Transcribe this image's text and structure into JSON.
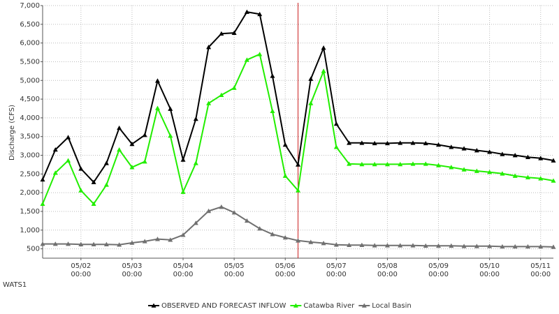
{
  "chart_data": {
    "type": "line",
    "y_label": "Discharge (CFS)",
    "station": "WATS1",
    "x": [
      "05/01 06:00",
      "05/01 12:00",
      "05/01 18:00",
      "05/02 00:00",
      "05/02 06:00",
      "05/02 12:00",
      "05/02 18:00",
      "05/03 00:00",
      "05/03 06:00",
      "05/03 12:00",
      "05/03 18:00",
      "05/04 00:00",
      "05/04 06:00",
      "05/04 12:00",
      "05/04 18:00",
      "05/05 00:00",
      "05/05 06:00",
      "05/05 12:00",
      "05/05 18:00",
      "05/06 00:00",
      "05/06 06:00",
      "05/06 12:00",
      "05/06 18:00",
      "05/07 00:00",
      "05/07 06:00",
      "05/07 12:00",
      "05/07 18:00",
      "05/08 00:00",
      "05/08 06:00",
      "05/08 12:00",
      "05/08 18:00",
      "05/09 00:00",
      "05/09 06:00",
      "05/09 12:00",
      "05/09 18:00",
      "05/10 00:00",
      "05/10 06:00",
      "05/10 12:00",
      "05/10 18:00",
      "05/11 00:00",
      "05/11 06:00"
    ],
    "series": [
      {
        "name": "OBSERVED AND FORECAST INFLOW",
        "color": "#000000",
        "values": [
          2350,
          3150,
          3480,
          2640,
          2280,
          2790,
          3730,
          3300,
          3540,
          4990,
          4240,
          2880,
          3970,
          5890,
          6250,
          6270,
          6830,
          6770,
          5120,
          3280,
          2750,
          5040,
          5870,
          3840,
          3330,
          3330,
          3320,
          3320,
          3330,
          3330,
          3320,
          3280,
          3220,
          3180,
          3130,
          3090,
          3030,
          3000,
          2950,
          2920,
          2860
        ]
      },
      {
        "name": "Catawba River",
        "color": "#22ee00",
        "values": [
          1700,
          2530,
          2860,
          2060,
          1700,
          2210,
          3150,
          2680,
          2830,
          4260,
          3520,
          2020,
          2790,
          4390,
          4610,
          4800,
          5550,
          5700,
          4180,
          2450,
          2060,
          4390,
          5250,
          3220,
          2770,
          2760,
          2760,
          2760,
          2760,
          2770,
          2770,
          2730,
          2680,
          2620,
          2580,
          2550,
          2510,
          2450,
          2410,
          2380,
          2320
        ]
      },
      {
        "name": "Local Basin",
        "color": "#707070",
        "values": [
          630,
          630,
          630,
          620,
          620,
          620,
          610,
          660,
          700,
          760,
          740,
          870,
          1190,
          1510,
          1620,
          1470,
          1250,
          1040,
          890,
          800,
          720,
          680,
          650,
          610,
          600,
          600,
          590,
          590,
          590,
          590,
          580,
          580,
          580,
          570,
          570,
          570,
          560,
          560,
          560,
          560,
          550
        ]
      }
    ],
    "forecast_time": "05/06 06:00",
    "marker_color": "#cc2222",
    "xlim": [
      "05/01 06:00",
      "05/11 06:00"
    ],
    "xticks": [
      {
        "value": "05/02 00:00",
        "label": [
          "05/02",
          "00:00"
        ]
      },
      {
        "value": "05/03 00:00",
        "label": [
          "05/03",
          "00:00"
        ]
      },
      {
        "value": "05/04 00:00",
        "label": [
          "05/04",
          "00:00"
        ]
      },
      {
        "value": "05/05 00:00",
        "label": [
          "05/05",
          "00:00"
        ]
      },
      {
        "value": "05/06 00:00",
        "label": [
          "05/06",
          "00:00"
        ]
      },
      {
        "value": "05/07 00:00",
        "label": [
          "05/07",
          "00:00"
        ]
      },
      {
        "value": "05/08 00:00",
        "label": [
          "05/08",
          "00:00"
        ]
      },
      {
        "value": "05/09 00:00",
        "label": [
          "05/09",
          "00:00"
        ]
      },
      {
        "value": "05/10 00:00",
        "label": [
          "05/10",
          "00:00"
        ]
      },
      {
        "value": "05/11 00:00",
        "label": [
          "05/11",
          "00:00"
        ]
      }
    ],
    "ylim": [
      250,
      7000
    ],
    "yticks": [
      500,
      {
        "value": 1000,
        "label": "1,000"
      },
      {
        "value": 1500,
        "label": "1,500"
      },
      {
        "value": 2000,
        "label": "2,000"
      },
      {
        "value": 2500,
        "label": "2,500"
      },
      {
        "value": 3000,
        "label": "3,000"
      },
      {
        "value": 3500,
        "label": "3,500"
      },
      {
        "value": 4000,
        "label": "4,000"
      },
      {
        "value": 4500,
        "label": "4,500"
      },
      {
        "value": 5000,
        "label": "5,000"
      },
      {
        "value": 5500,
        "label": "5,500"
      },
      {
        "value": 6000,
        "label": "6,000"
      },
      {
        "value": 6500,
        "label": "6,500"
      },
      {
        "value": 7000,
        "label": "7,000"
      }
    ],
    "grid": true,
    "legend": "bottom"
  }
}
